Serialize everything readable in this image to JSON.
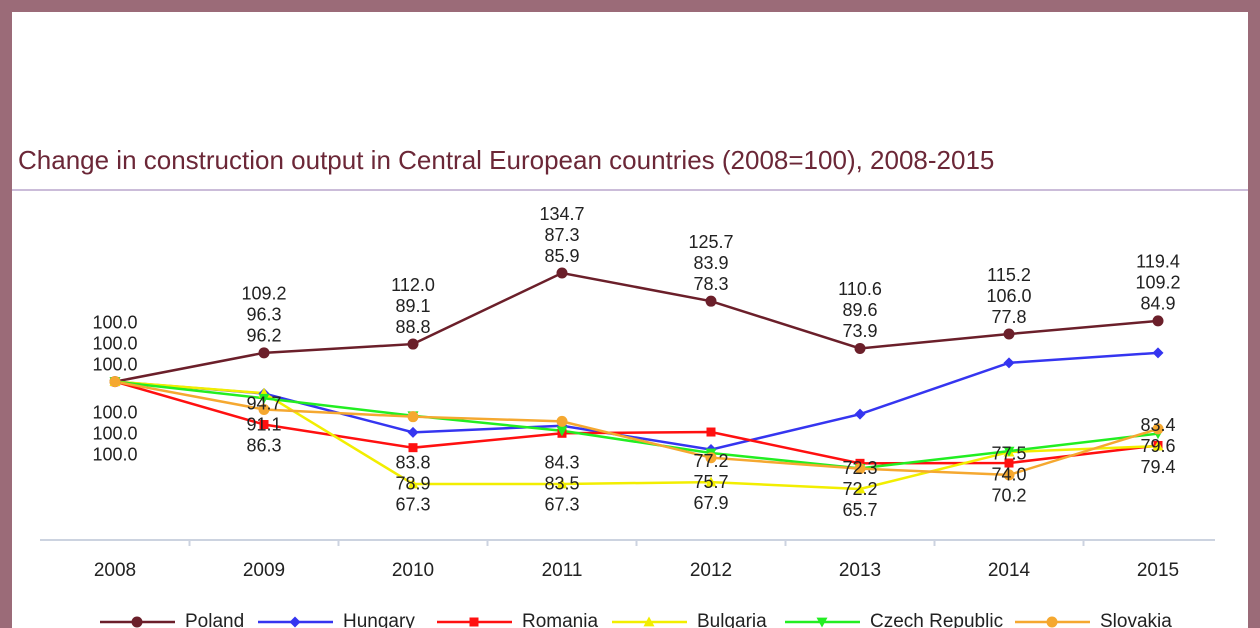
{
  "chart_data": {
    "type": "line",
    "title": "Change in construction output in Central European countries (2008=100), 2008-2015",
    "categories": [
      "2008",
      "2009",
      "2010",
      "2011",
      "2012",
      "2013",
      "2014",
      "2015"
    ],
    "series": [
      {
        "name": "Poland",
        "color": "#6b1f2a",
        "marker": "circle",
        "values": [
          100,
          109.2,
          112,
          134.7,
          125.7,
          110.6,
          115.2,
          119.4
        ],
        "value_labels": [
          "100.0",
          "109.2",
          "112.0",
          "134.7",
          "125.7",
          "110.6",
          "115.2",
          "119.4"
        ]
      },
      {
        "name": "Hungary",
        "color": "#3535f0",
        "marker": "diamond",
        "values": [
          100,
          96.2,
          83.8,
          85.9,
          78.3,
          89.6,
          106,
          109.2
        ],
        "value_labels": [
          "100.0",
          "96.2",
          "83.8",
          "85.9",
          "78.3",
          "89.6",
          "106.0",
          "109.2"
        ]
      },
      {
        "name": "Romania",
        "color": "#ff1010",
        "marker": "square",
        "values": [
          100,
          86.3,
          78.9,
          83.5,
          83.9,
          73.9,
          74,
          79.6
        ],
        "value_labels": [
          "100.0",
          "86.3",
          "78.9",
          "83.5",
          "83.9",
          "73.9",
          "74.0",
          "79.6"
        ]
      },
      {
        "name": "Bulgaria",
        "color": "#f2ee00",
        "marker": "triangle-up",
        "values": [
          100,
          96.3,
          67.3,
          67.3,
          67.9,
          65.7,
          77.5,
          79.4
        ],
        "value_labels": [
          "100.0",
          "96.3",
          "67.3",
          "67.3",
          "67.9",
          "65.7",
          "77.5",
          "79.4"
        ]
      },
      {
        "name": "Czech Republic",
        "color": "#22ee22",
        "marker": "triangle-down",
        "values": [
          100,
          94.7,
          89.1,
          84.3,
          77.2,
          72.3,
          77.8,
          83.4
        ],
        "value_labels": [
          "100.0",
          "94.7",
          "89.1",
          "84.3",
          "77.2",
          "72.3",
          "77.8",
          "83.4"
        ]
      },
      {
        "name": "Slovakia",
        "color": "#f5a830",
        "marker": "circle",
        "values": [
          100,
          91.1,
          88.8,
          87.3,
          75.7,
          72.2,
          70.2,
          84.9
        ],
        "value_labels": [
          "100.0",
          "91.1",
          "88.8",
          "87.3",
          "75.7",
          "72.2",
          "70.2",
          "84.9"
        ]
      }
    ]
  }
}
